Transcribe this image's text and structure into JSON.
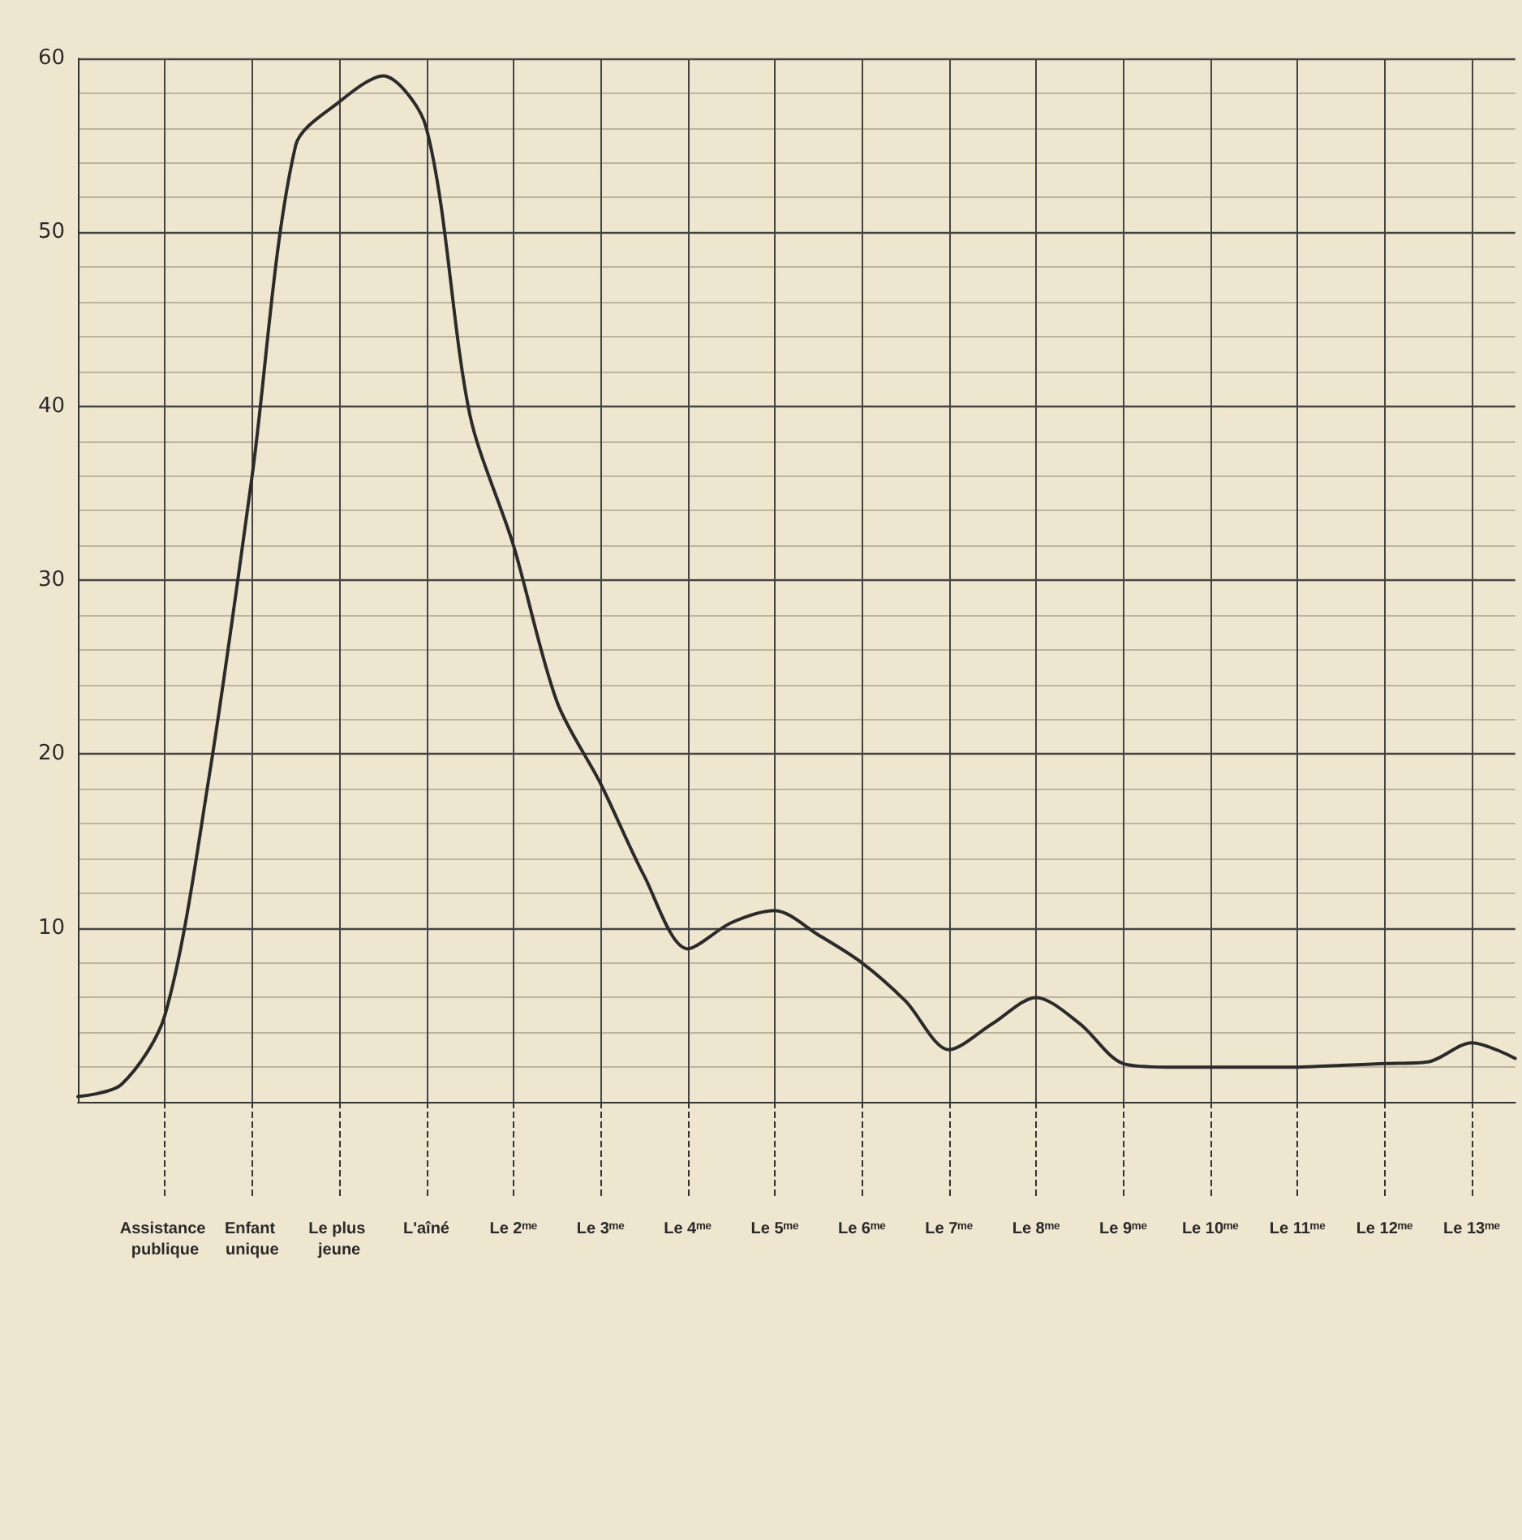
{
  "chart_data": {
    "type": "line",
    "categories": [
      null,
      null,
      "Assistance publique",
      null,
      "Enfant unique",
      null,
      "Le plus jeune",
      null,
      "L'aîné",
      null,
      "Le 2ᵐᵉ",
      null,
      "Le 3ᵐᵉ",
      null,
      "Le 4ᵐᵉ",
      null,
      "Le 5ᵐᵉ",
      null,
      "Le 6ᵐᵉ",
      null,
      "Le 7ᵐᵉ",
      null,
      "Le 8ᵐᵉ",
      null,
      "Le 9ᵐᵉ",
      null,
      "Le 10ᵐᵉ",
      null,
      "Le 11ᵐᵉ",
      null,
      "Le 12ᵐᵉ",
      null,
      "Le 13ᵐᵉ",
      null
    ],
    "series": [
      {
        "color": "#2b2b2b",
        "values": [
          0.3,
          1,
          5,
          18.5,
          36,
          55,
          57.5,
          59,
          56,
          39.5,
          32,
          23,
          18.3,
          13,
          8.8,
          10.3,
          11,
          9.6,
          8,
          5.8,
          3,
          4.5,
          6,
          4.5,
          2.2,
          2,
          2,
          2,
          2,
          2.1,
          2.2,
          2.3,
          3.4,
          2.5
        ]
      }
    ],
    "ylim": [
      0,
      60
    ],
    "yticks": [
      10,
      20,
      30,
      40,
      50,
      60
    ],
    "grid": true,
    "marker": "none",
    "line_style": "solid"
  }
}
